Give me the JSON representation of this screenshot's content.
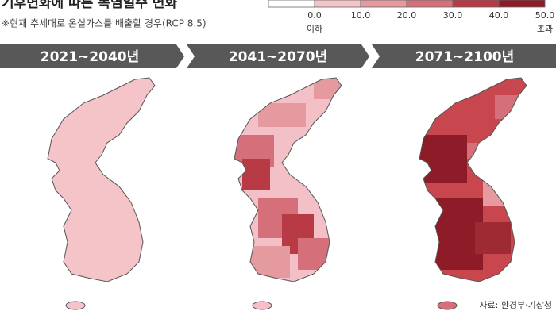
{
  "header": {
    "title": "기후변화에 따른 폭염일수 변화",
    "subtitle": "※현재 추세대로 온실가스를 배출할 경우(RCP 8.5)"
  },
  "legend": {
    "colors": [
      "#ffffff",
      "#f4c4c8",
      "#e59a9f",
      "#d5707a",
      "#b83a45",
      "#8e1c28"
    ],
    "labels": [
      "0.0",
      "10.0",
      "20.0",
      "30.0",
      "40.0",
      "50.0"
    ],
    "first_note": "이하",
    "last_note": "초과"
  },
  "panels": [
    {
      "title": "2021~2040년"
    },
    {
      "title": "2041~2070년"
    },
    {
      "title": "2071~2100년"
    }
  ],
  "source": "자료: 환경부·기상청"
}
